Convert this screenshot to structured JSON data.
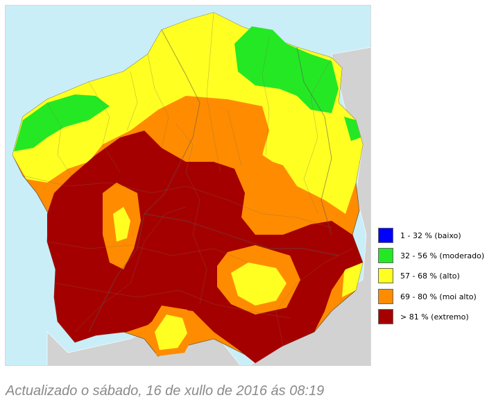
{
  "map": {
    "colors": {
      "sea": "#c9eef8",
      "neighbor_land": "#d2d2d2",
      "baixo": "#0000ff",
      "moderado": "#24e824",
      "alto": "#ffff22",
      "moi_alto": "#ff8c00",
      "extremo": "#a50000",
      "boundary": "#7a6a50"
    }
  },
  "legend": {
    "items": [
      {
        "label": "1 - 32 % (baixo)",
        "color": "#0000ff"
      },
      {
        "label": "32 - 56 % (moderado)",
        "color": "#24e824"
      },
      {
        "label": "57 - 68 % (alto)",
        "color": "#ffff22"
      },
      {
        "label": "69 - 80 % (moi alto)",
        "color": "#ff8c00"
      },
      {
        "label": "> 81 % (extremo)",
        "color": "#a50000"
      }
    ]
  },
  "caption": "Actualizado o sábado, 16 de xullo de 2016 ás 08:19"
}
